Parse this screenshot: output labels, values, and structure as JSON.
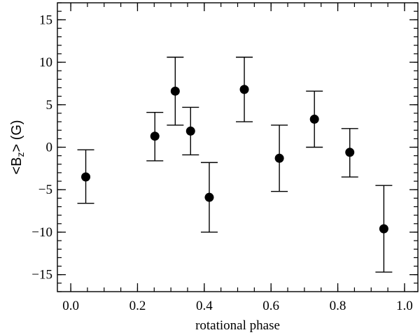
{
  "chart_data": {
    "type": "scatter",
    "title": "",
    "xlabel": "rotational phase",
    "ylabel": {
      "prefix": "<B",
      "subscript": "z",
      "suffix": "> (G)"
    },
    "xlim": [
      -0.04,
      1.04
    ],
    "ylim": [
      -17,
      17
    ],
    "xticks": [
      {
        "value": 0.0,
        "label": "0.0"
      },
      {
        "value": 0.2,
        "label": "0.2"
      },
      {
        "value": 0.4,
        "label": "0.4"
      },
      {
        "value": 0.6,
        "label": "0.6"
      },
      {
        "value": 0.8,
        "label": "0.8"
      },
      {
        "value": 1.0,
        "label": "1.0"
      }
    ],
    "yticks": [
      {
        "value": 15,
        "label": "15"
      },
      {
        "value": 10,
        "label": "10"
      },
      {
        "value": 5,
        "label": "5"
      },
      {
        "value": 0,
        "label": "0"
      },
      {
        "value": -5,
        "label": "−5"
      },
      {
        "value": -10,
        "label": "−10"
      },
      {
        "value": -15,
        "label": "−15"
      }
    ],
    "x_minor_step": 0.05,
    "y_minor_step": 1,
    "grid": false,
    "marker_color": "#000000",
    "points": [
      {
        "x": 0.045,
        "y": -3.5,
        "err_low": -6.6,
        "err_high": -0.3
      },
      {
        "x": 0.252,
        "y": 1.3,
        "err_low": -1.6,
        "err_high": 4.1
      },
      {
        "x": 0.313,
        "y": 6.6,
        "err_low": 2.6,
        "err_high": 10.6
      },
      {
        "x": 0.359,
        "y": 1.9,
        "err_low": -0.9,
        "err_high": 4.7
      },
      {
        "x": 0.415,
        "y": -5.9,
        "err_low": -10.0,
        "err_high": -1.8
      },
      {
        "x": 0.52,
        "y": 6.8,
        "err_low": 3.0,
        "err_high": 10.6
      },
      {
        "x": 0.625,
        "y": -1.3,
        "err_low": -5.2,
        "err_high": 2.6
      },
      {
        "x": 0.73,
        "y": 3.3,
        "err_low": 0.0,
        "err_high": 6.6
      },
      {
        "x": 0.836,
        "y": -0.6,
        "err_low": -3.5,
        "err_high": 2.2
      },
      {
        "x": 0.938,
        "y": -9.6,
        "err_low": -14.7,
        "err_high": -4.5
      }
    ]
  }
}
